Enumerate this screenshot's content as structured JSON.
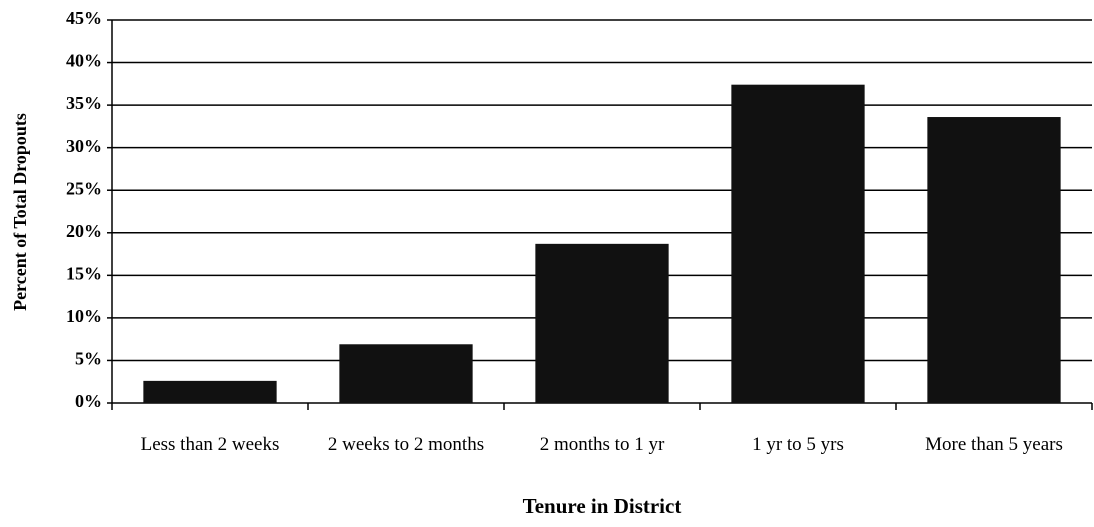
{
  "chart_data": {
    "type": "bar",
    "x_label": "Tenure in District",
    "y_label": "Percent of Total Dropouts",
    "categories": [
      "Less than 2 weeks",
      "2 weeks to 2 months",
      "2 months to 1 yr",
      "1 yr to 5 yrs",
      "More than 5 years"
    ],
    "values": [
      2.6,
      6.9,
      18.7,
      37.4,
      33.6
    ],
    "color": "#111111",
    "ylim": [
      0,
      45
    ],
    "yticks": [
      {
        "value": 0,
        "label": "0%"
      },
      {
        "value": 5,
        "label": "5%"
      },
      {
        "value": 10,
        "label": "10%"
      },
      {
        "value": 15,
        "label": "15%"
      },
      {
        "value": 20,
        "label": "20%"
      },
      {
        "value": 25,
        "label": "25%"
      },
      {
        "value": 30,
        "label": "30%"
      },
      {
        "value": 35,
        "label": "35%"
      },
      {
        "value": 40,
        "label": "40%"
      },
      {
        "value": 45,
        "label": "45%"
      }
    ],
    "grid": true
  }
}
